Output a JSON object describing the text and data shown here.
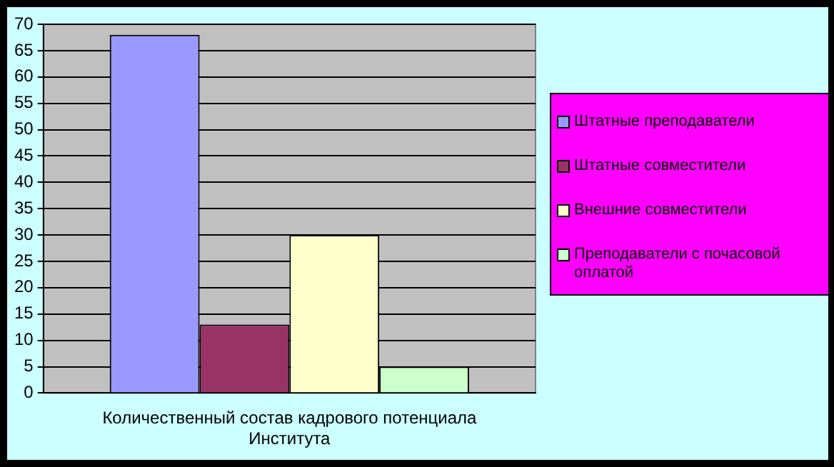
{
  "chart_data": {
    "type": "bar",
    "categories": [
      "Количественный состав кадрового потенциала Института"
    ],
    "series": [
      {
        "name": "Штатные преподаватели",
        "color": "#9999ff",
        "values": [
          68
        ]
      },
      {
        "name": "Штатные совместители",
        "color": "#993366",
        "values": [
          13
        ]
      },
      {
        "name": "Внешние совместители",
        "color": "#ffffcc",
        "values": [
          30
        ]
      },
      {
        "name": "Преподаватели с почасовой оплатой",
        "color": "#ccffcc",
        "values": [
          5
        ]
      }
    ],
    "ylim": [
      0,
      70
    ],
    "yticks": [
      0,
      5,
      10,
      15,
      20,
      25,
      30,
      35,
      40,
      45,
      50,
      55,
      60,
      65,
      70
    ],
    "grid": "y",
    "legend": "right"
  }
}
